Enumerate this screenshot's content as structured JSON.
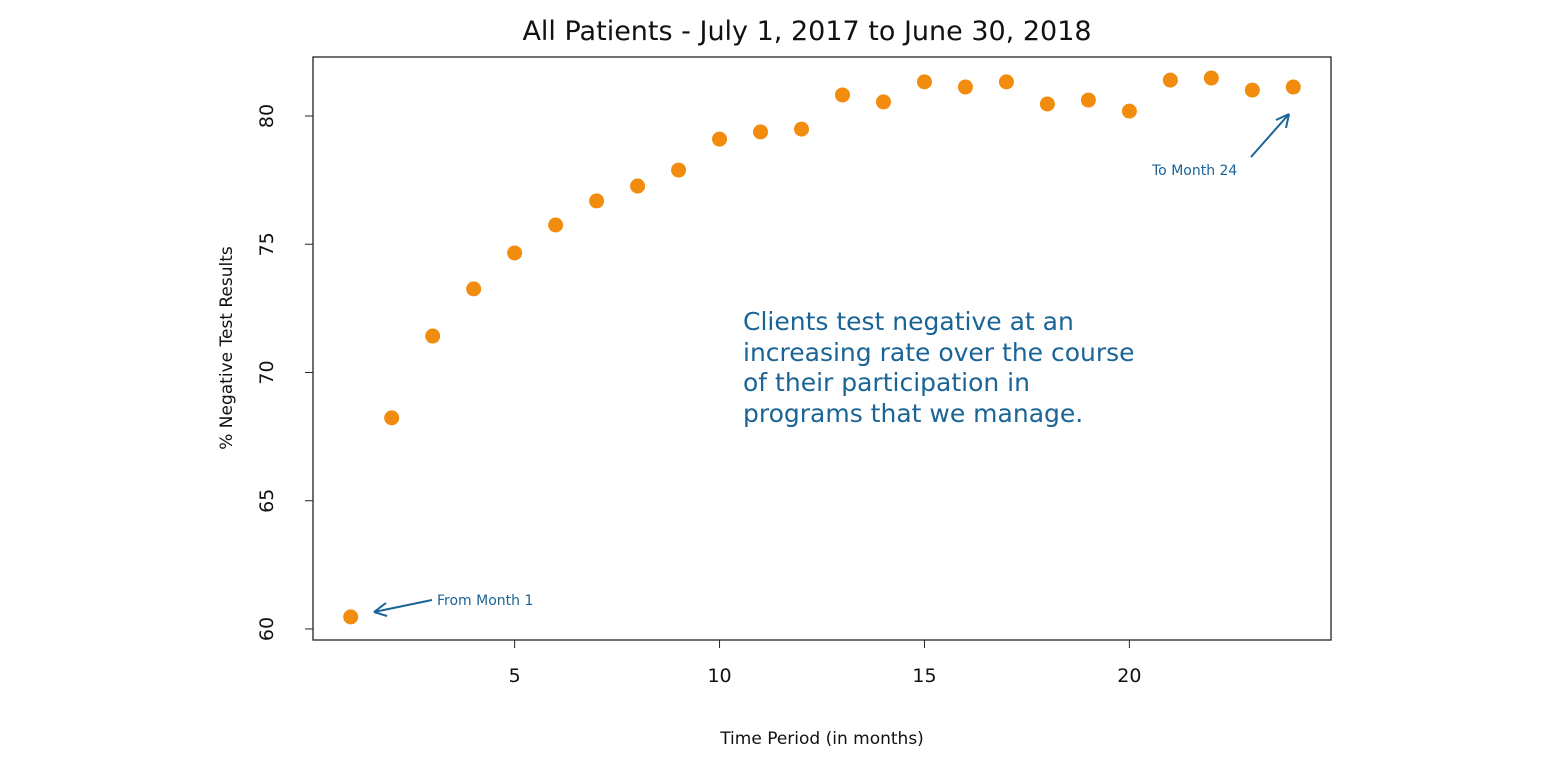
{
  "chart_data": {
    "type": "scatter",
    "title": "All Patients - July 1, 2017 to June 30, 2018",
    "xlabel": "Time Period (in months)",
    "ylabel": "% Negative Test Results",
    "x": [
      1,
      2,
      3,
      4,
      5,
      6,
      7,
      8,
      9,
      10,
      11,
      12,
      13,
      14,
      15,
      16,
      17,
      18,
      19,
      20,
      21,
      22,
      23,
      24
    ],
    "y": [
      60.47,
      68.23,
      71.42,
      73.26,
      74.66,
      75.75,
      76.69,
      77.27,
      77.89,
      79.1,
      79.38,
      79.49,
      80.82,
      80.55,
      81.33,
      81.13,
      81.33,
      80.47,
      80.62,
      80.19,
      81.4,
      81.48,
      81.01,
      81.13
    ],
    "xlim": [
      0.08,
      24.92
    ],
    "ylim": [
      59.57,
      82.3
    ],
    "xticks": [
      5,
      10,
      15,
      20
    ],
    "yticks": [
      60,
      65,
      70,
      75,
      80
    ],
    "grid": false,
    "colors": {
      "points": "#f28c0f",
      "annotation": "#1a6496"
    },
    "annotations": {
      "start": "From Month 1",
      "end": "To Month 24",
      "note_lines": [
        "Clients test negative at an",
        "increasing rate over the course",
        "of their participation in",
        "programs that we manage."
      ]
    }
  }
}
